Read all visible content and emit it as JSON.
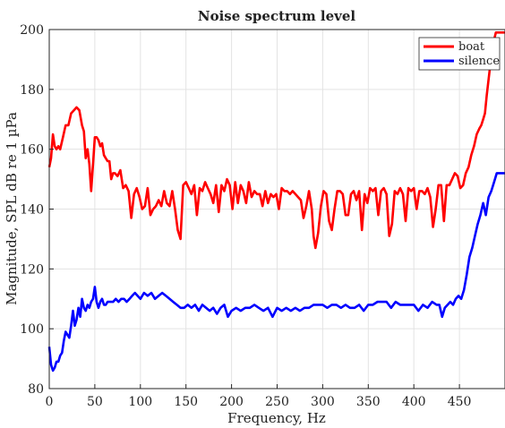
{
  "chart_data": {
    "type": "line",
    "title": "Noise spectrum level",
    "xlabel": "Frequency, Hz",
    "ylabel": "Magnitude, SPL dB re 1 µPa",
    "xlim": [
      0,
      500
    ],
    "ylim": [
      80,
      200
    ],
    "xticks": [
      0,
      50,
      100,
      150,
      200,
      250,
      300,
      350,
      400,
      450
    ],
    "yticks": [
      80,
      100,
      120,
      140,
      160,
      180,
      200
    ],
    "grid": true,
    "legend_position": "top-right",
    "series": [
      {
        "name": "boat",
        "color": "#ff0000",
        "x": [
          0,
          2,
          4,
          6,
          8,
          10,
          12,
          15,
          18,
          21,
          24,
          27,
          30,
          33,
          36,
          38,
          40,
          42,
          44,
          46,
          48,
          50,
          52,
          54,
          56,
          58,
          60,
          62,
          64,
          66,
          68,
          70,
          72,
          75,
          78,
          81,
          84,
          87,
          90,
          93,
          96,
          99,
          102,
          105,
          108,
          111,
          114,
          117,
          120,
          123,
          126,
          129,
          132,
          135,
          138,
          141,
          144,
          147,
          150,
          153,
          156,
          159,
          162,
          165,
          168,
          171,
          174,
          177,
          180,
          183,
          186,
          189,
          192,
          195,
          198,
          201,
          204,
          207,
          210,
          213,
          216,
          219,
          222,
          225,
          228,
          231,
          234,
          237,
          240,
          243,
          246,
          249,
          252,
          255,
          258,
          261,
          264,
          267,
          270,
          273,
          276,
          279,
          282,
          285,
          288,
          290,
          292,
          295,
          298,
          301,
          304,
          307,
          310,
          313,
          316,
          319,
          322,
          325,
          328,
          331,
          334,
          337,
          340,
          343,
          346,
          349,
          352,
          355,
          358,
          361,
          364,
          367,
          370,
          373,
          376,
          379,
          382,
          385,
          388,
          391,
          394,
          397,
          400,
          403,
          406,
          409,
          412,
          415,
          418,
          421,
          424,
          427,
          430,
          433,
          436,
          439,
          442,
          445,
          448,
          451,
          454,
          457,
          460,
          463,
          466,
          469,
          472,
          474,
          476,
          478,
          480,
          483,
          486,
          490,
          495,
          500
        ],
        "values": [
          154,
          157,
          165,
          161,
          160,
          161,
          160,
          164,
          168,
          168,
          172,
          173,
          174,
          173,
          168,
          166,
          157,
          160,
          155,
          146,
          155,
          164,
          164,
          163,
          161,
          162,
          158,
          157,
          156,
          156,
          150,
          152,
          152,
          151,
          153,
          147,
          148,
          146,
          137,
          145,
          147,
          144,
          140,
          141,
          147,
          138,
          140,
          141,
          143,
          141,
          146,
          142,
          141,
          146,
          140,
          133,
          130,
          148,
          149,
          147,
          145,
          148,
          138,
          147,
          146,
          149,
          147,
          145,
          142,
          148,
          139,
          148,
          146,
          150,
          148,
          140,
          149,
          142,
          148,
          146,
          142,
          149,
          144,
          146,
          145,
          145,
          141,
          146,
          142,
          145,
          144,
          145,
          140,
          147,
          146,
          146,
          145,
          146,
          145,
          144,
          143,
          137,
          141,
          146,
          140,
          131,
          127,
          132,
          141,
          146,
          145,
          136,
          133,
          140,
          146,
          146,
          145,
          138,
          138,
          145,
          146,
          143,
          146,
          133,
          145,
          142,
          147,
          146,
          147,
          138,
          146,
          147,
          145,
          131,
          135,
          146,
          145,
          147,
          145,
          136,
          147,
          146,
          147,
          140,
          146,
          146,
          145,
          147,
          144,
          134,
          140,
          148,
          148,
          136,
          148,
          148,
          150,
          152,
          151,
          147,
          148,
          152,
          154,
          158,
          161,
          165,
          167,
          168,
          170,
          172,
          178,
          186,
          194,
          199,
          199,
          199
        ]
      },
      {
        "name": "silence",
        "color": "#0000ff",
        "x": [
          0,
          2,
          4,
          6,
          8,
          10,
          12,
          14,
          16,
          18,
          20,
          22,
          24,
          26,
          28,
          30,
          32,
          34,
          36,
          38,
          40,
          42,
          44,
          46,
          48,
          50,
          52,
          54,
          56,
          58,
          60,
          62,
          64,
          67,
          70,
          73,
          76,
          79,
          82,
          85,
          88,
          91,
          94,
          97,
          100,
          104,
          108,
          112,
          116,
          120,
          124,
          128,
          132,
          136,
          140,
          144,
          148,
          152,
          156,
          160,
          164,
          168,
          172,
          176,
          180,
          184,
          188,
          192,
          196,
          200,
          205,
          210,
          215,
          220,
          225,
          230,
          235,
          240,
          245,
          250,
          255,
          260,
          265,
          270,
          275,
          280,
          285,
          290,
          295,
          300,
          305,
          310,
          315,
          320,
          325,
          330,
          335,
          340,
          345,
          350,
          355,
          360,
          365,
          370,
          375,
          380,
          385,
          390,
          395,
          400,
          405,
          410,
          415,
          420,
          425,
          428,
          431,
          434,
          437,
          440,
          443,
          446,
          449,
          452,
          455,
          458,
          461,
          464,
          467,
          470,
          473,
          476,
          479,
          482,
          485,
          488,
          491,
          494,
          497,
          500
        ],
        "values": [
          94,
          88,
          86,
          87,
          89,
          89,
          91,
          92,
          96,
          99,
          98,
          97,
          101,
          106,
          101,
          103,
          107,
          104,
          110,
          107,
          106,
          108,
          107,
          109,
          110,
          114,
          109,
          107,
          109,
          110,
          108,
          108,
          109,
          109,
          109,
          110,
          109,
          110,
          110,
          109,
          110,
          111,
          112,
          111,
          110,
          112,
          111,
          112,
          110,
          111,
          112,
          111,
          110,
          109,
          108,
          107,
          107,
          108,
          107,
          108,
          106,
          108,
          107,
          106,
          107,
          105,
          107,
          108,
          104,
          106,
          107,
          106,
          107,
          107,
          108,
          107,
          106,
          107,
          104,
          107,
          106,
          107,
          106,
          107,
          106,
          107,
          107,
          108,
          108,
          108,
          107,
          108,
          108,
          107,
          108,
          107,
          107,
          108,
          106,
          108,
          108,
          109,
          109,
          109,
          107,
          109,
          108,
          108,
          108,
          108,
          106,
          108,
          107,
          109,
          108,
          108,
          104,
          107,
          108,
          109,
          108,
          110,
          111,
          110,
          113,
          118,
          124,
          127,
          131,
          135,
          138,
          142,
          138,
          144,
          146,
          149,
          152,
          152,
          152,
          152
        ]
      }
    ]
  }
}
